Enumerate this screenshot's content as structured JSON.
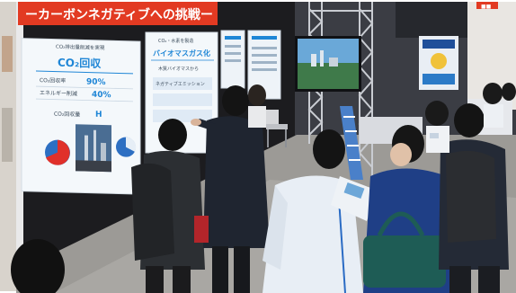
{
  "banner": {
    "text": "ーカーボンネガティブへの挑戦ー"
  },
  "poster1": {
    "heading_small": "CO₂排出量削減を実現",
    "heading": "CO₂回収",
    "line1_label": "CO₂回収率",
    "line1_value": "90%",
    "line2_label": "エネルギー削減",
    "line2_value": "40%",
    "line3_label": "CO₂回収量",
    "line3_value": "H"
  },
  "poster2": {
    "heading_small": "CO₂・水素を製造",
    "heading": "バイオマスガス化",
    "note1": "木質バイオマスから",
    "note2": "ネガティブエミッション"
  },
  "small_sign": {
    "text": "■■"
  },
  "colors": {
    "banner_red": "#e23a22",
    "booth_dark": "#1c1c1f",
    "poster_blue": "#1f86d6",
    "pie_red": "#e0302a",
    "pie_blue": "#2d6fc2",
    "floor": "#9c9a96"
  }
}
